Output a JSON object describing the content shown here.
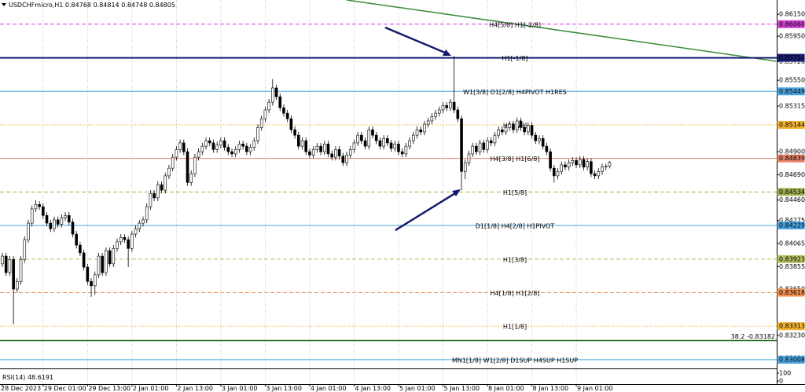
{
  "chart_data": {
    "type": "candlestick",
    "symbol": "USDCHFmicro,H1",
    "categories": [
      "28 Dec 2023",
      null,
      null,
      null,
      null,
      null,
      null,
      null,
      null,
      null,
      null,
      "29 Dec 01:00",
      null,
      null,
      null,
      null,
      null,
      null,
      null,
      null,
      null,
      null,
      null,
      "29 Dec 13:00",
      null,
      null,
      null,
      null,
      null,
      null,
      null,
      null,
      null,
      null,
      null,
      "2 Jan 01:00",
      null,
      null,
      null,
      null,
      null,
      null,
      null,
      null,
      null,
      null,
      null,
      "2 Jan 13:00",
      null,
      null,
      null,
      null,
      null,
      null,
      null,
      null,
      null,
      null,
      null,
      "3 Jan 01:00",
      null,
      null,
      null,
      null,
      null,
      null,
      null,
      null,
      null,
      null,
      null,
      "3 Jan 13:00",
      null,
      null,
      null,
      null,
      null,
      null,
      null,
      null,
      null,
      null,
      null,
      "4 Jan 01:00",
      null,
      null,
      null,
      null,
      null,
      null,
      null,
      null,
      null,
      null,
      null,
      "4 Jan 13:00",
      null,
      null,
      null,
      null,
      null,
      null,
      null,
      null,
      null,
      null,
      null,
      "5 Jan 01:00",
      null,
      null,
      null,
      null,
      null,
      null,
      null,
      null,
      null,
      null,
      null,
      "5 Jan 13:00",
      null,
      null,
      null,
      null,
      null,
      null,
      null,
      null,
      null,
      null,
      null,
      "8 Jan 01:00",
      null,
      null,
      null,
      null,
      null,
      null,
      null,
      null,
      null,
      null,
      null,
      "8 Jan 13:00",
      null,
      null,
      null,
      null,
      null,
      null,
      null,
      null,
      null,
      null,
      null,
      "9 Jan 01:00",
      null,
      null,
      null,
      null,
      null,
      null,
      null,
      null,
      null
    ],
    "open": [
      0.8388,
      0.8395,
      0.838,
      0.8392,
      0.8365,
      0.8372,
      0.8392,
      0.841,
      0.8425,
      0.8438,
      0.8442,
      0.844,
      0.8432,
      0.8425,
      0.842,
      0.8428,
      0.8424,
      0.843,
      0.8432,
      0.8426,
      0.8415,
      0.8405,
      0.8398,
      0.8385,
      0.8372,
      0.8368,
      0.8378,
      0.8395,
      0.838,
      0.84,
      0.8388,
      0.8402,
      0.8408,
      0.8412,
      0.841,
      0.8402,
      0.8415,
      0.842,
      0.8425,
      0.8428,
      0.844,
      0.8452,
      0.8448,
      0.846,
      0.8455,
      0.8468,
      0.8475,
      0.8485,
      0.8492,
      0.8498,
      0.849,
      0.8462,
      0.847,
      0.8485,
      0.849,
      0.8495,
      0.85,
      0.8498,
      0.8492,
      0.8496,
      0.85,
      0.8494,
      0.849,
      0.8488,
      0.8492,
      0.8497,
      0.8495,
      0.849,
      0.8494,
      0.85,
      0.8512,
      0.852,
      0.8528,
      0.8535,
      0.8548,
      0.854,
      0.853,
      0.8525,
      0.852,
      0.851,
      0.8505,
      0.8495,
      0.85,
      0.849,
      0.8487,
      0.8492,
      0.8495,
      0.849,
      0.8497,
      0.8488,
      0.8485,
      0.8492,
      0.8486,
      0.848,
      0.8487,
      0.8492,
      0.8498,
      0.8505,
      0.85,
      0.8495,
      0.851,
      0.8505,
      0.85,
      0.8495,
      0.8502,
      0.8498,
      0.8493,
      0.8497,
      0.849,
      0.8488,
      0.8495,
      0.85,
      0.8505,
      0.851,
      0.8508,
      0.8515,
      0.8518,
      0.8522,
      0.8525,
      0.8528,
      0.8532,
      0.853,
      0.8535,
      0.8528,
      0.852,
      0.8472,
      0.848,
      0.8488,
      0.8495,
      0.849,
      0.8498,
      0.8492,
      0.85,
      0.8498,
      0.8505,
      0.851,
      0.8508,
      0.8512,
      0.8515,
      0.851,
      0.8518,
      0.8512,
      0.8508,
      0.8514,
      0.8505,
      0.85,
      0.8502,
      0.8495,
      0.849,
      0.8475,
      0.8468,
      0.8472,
      0.8478,
      0.8476,
      0.848,
      0.8482,
      0.8478,
      0.8483,
      0.8476,
      0.8481,
      0.847,
      0.8468,
      0.8472,
      0.8476,
      0.84768
    ],
    "high": [
      0.8398,
      0.8398,
      0.8395,
      0.8395,
      0.8375,
      0.8395,
      0.8413,
      0.8428,
      0.8441,
      0.8446,
      0.8445,
      0.8443,
      0.8435,
      0.8428,
      0.8431,
      0.8431,
      0.8433,
      0.8435,
      0.8435,
      0.8429,
      0.8418,
      0.8408,
      0.8401,
      0.8388,
      0.8375,
      0.8381,
      0.8398,
      0.8398,
      0.8403,
      0.8403,
      0.8405,
      0.8411,
      0.8415,
      0.8415,
      0.8413,
      0.8418,
      0.8423,
      0.8428,
      0.8431,
      0.8443,
      0.8455,
      0.8455,
      0.8463,
      0.8463,
      0.8471,
      0.8478,
      0.8488,
      0.8495,
      0.8501,
      0.8501,
      0.8493,
      0.8473,
      0.8488,
      0.8493,
      0.8498,
      0.8503,
      0.8503,
      0.8501,
      0.8499,
      0.8503,
      0.8503,
      0.8497,
      0.8493,
      0.8495,
      0.85,
      0.85,
      0.8498,
      0.8497,
      0.8503,
      0.8515,
      0.8523,
      0.8531,
      0.8538,
      0.8556,
      0.8551,
      0.8543,
      0.8533,
      0.8528,
      0.8523,
      0.8513,
      0.8508,
      0.8503,
      0.8503,
      0.8493,
      0.8495,
      0.8498,
      0.8498,
      0.85,
      0.85,
      0.8491,
      0.8495,
      0.8495,
      0.8489,
      0.849,
      0.8495,
      0.8501,
      0.8508,
      0.8508,
      0.8503,
      0.8513,
      0.8513,
      0.8508,
      0.8503,
      0.8505,
      0.8505,
      0.8501,
      0.85,
      0.85,
      0.8493,
      0.8498,
      0.8503,
      0.8508,
      0.8513,
      0.8513,
      0.8518,
      0.8521,
      0.8525,
      0.8528,
      0.8531,
      0.8535,
      0.8535,
      0.8538,
      0.8577,
      0.8531,
      0.8523,
      0.8483,
      0.8491,
      0.8498,
      0.8498,
      0.8501,
      0.8501,
      0.8503,
      0.8503,
      0.8508,
      0.8513,
      0.8513,
      0.8515,
      0.8518,
      0.8518,
      0.8521,
      0.8521,
      0.8515,
      0.8517,
      0.8517,
      0.8508,
      0.8505,
      0.8505,
      0.8498,
      0.8493,
      0.8478,
      0.8475,
      0.8481,
      0.8481,
      0.8483,
      0.8485,
      0.8485,
      0.8486,
      0.8486,
      0.8484,
      0.8484,
      0.8473,
      0.8475,
      0.8479,
      0.8479,
      0.84814
    ],
    "low": [
      0.8385,
      0.8377,
      0.8377,
      0.8333,
      0.8362,
      0.8369,
      0.8389,
      0.8407,
      0.8422,
      0.8435,
      0.8437,
      0.8429,
      0.8422,
      0.8417,
      0.8417,
      0.8421,
      0.8421,
      0.8427,
      0.8423,
      0.8412,
      0.8402,
      0.8395,
      0.8382,
      0.8369,
      0.8358,
      0.836,
      0.8375,
      0.8377,
      0.8377,
      0.8385,
      0.8385,
      0.8399,
      0.8405,
      0.8407,
      0.8385,
      0.8399,
      0.8412,
      0.8417,
      0.8422,
      0.8425,
      0.8437,
      0.8445,
      0.8445,
      0.8452,
      0.8452,
      0.8465,
      0.8472,
      0.8482,
      0.8489,
      0.8487,
      0.8459,
      0.8459,
      0.8467,
      0.8482,
      0.8487,
      0.8492,
      0.8495,
      0.8489,
      0.8489,
      0.8493,
      0.8491,
      0.8487,
      0.8485,
      0.8485,
      0.8489,
      0.8492,
      0.8487,
      0.8487,
      0.8491,
      0.8497,
      0.8509,
      0.8517,
      0.8525,
      0.8532,
      0.8537,
      0.8527,
      0.8522,
      0.8517,
      0.8507,
      0.8502,
      0.8492,
      0.8492,
      0.8487,
      0.8484,
      0.8484,
      0.8489,
      0.8487,
      0.8487,
      0.8485,
      0.8482,
      0.8482,
      0.8483,
      0.8477,
      0.8477,
      0.8484,
      0.8489,
      0.8495,
      0.8497,
      0.8492,
      0.8492,
      0.8502,
      0.8497,
      0.8492,
      0.8492,
      0.8495,
      0.849,
      0.849,
      0.8487,
      0.8485,
      0.8485,
      0.8492,
      0.8497,
      0.8502,
      0.8505,
      0.8505,
      0.8512,
      0.8515,
      0.8519,
      0.8522,
      0.8525,
      0.8527,
      0.8527,
      0.8525,
      0.8517,
      0.8455,
      0.8465,
      0.8477,
      0.8485,
      0.8487,
      0.8487,
      0.8489,
      0.8489,
      0.8495,
      0.8495,
      0.8502,
      0.8505,
      0.8505,
      0.8509,
      0.8507,
      0.8507,
      0.8509,
      0.8505,
      0.8505,
      0.8502,
      0.8497,
      0.8497,
      0.8492,
      0.8487,
      0.8472,
      0.8462,
      0.8465,
      0.8469,
      0.8473,
      0.8473,
      0.8477,
      0.8475,
      0.8475,
      0.8473,
      0.8473,
      0.8467,
      0.8465,
      0.8465,
      0.8469,
      0.8473,
      0.84748
    ],
    "close": [
      0.8395,
      0.838,
      0.8392,
      0.8365,
      0.8372,
      0.8392,
      0.841,
      0.8425,
      0.8438,
      0.8442,
      0.844,
      0.8432,
      0.8425,
      0.842,
      0.8428,
      0.8424,
      0.843,
      0.8432,
      0.8426,
      0.8415,
      0.8405,
      0.8398,
      0.8385,
      0.8372,
      0.8368,
      0.8378,
      0.8395,
      0.838,
      0.84,
      0.8388,
      0.8402,
      0.8408,
      0.8412,
      0.841,
      0.8402,
      0.8415,
      0.842,
      0.8425,
      0.8428,
      0.844,
      0.8452,
      0.8448,
      0.846,
      0.8455,
      0.8468,
      0.8475,
      0.8485,
      0.8492,
      0.8498,
      0.849,
      0.8462,
      0.847,
      0.8485,
      0.849,
      0.8495,
      0.85,
      0.8498,
      0.8492,
      0.8496,
      0.85,
      0.8494,
      0.849,
      0.8488,
      0.8492,
      0.8497,
      0.8495,
      0.849,
      0.8494,
      0.85,
      0.8512,
      0.852,
      0.8528,
      0.8535,
      0.8548,
      0.854,
      0.853,
      0.8525,
      0.852,
      0.851,
      0.8505,
      0.8495,
      0.85,
      0.849,
      0.8487,
      0.8492,
      0.8495,
      0.849,
      0.8497,
      0.8488,
      0.8485,
      0.8492,
      0.8486,
      0.848,
      0.8487,
      0.8492,
      0.8498,
      0.8505,
      0.85,
      0.8495,
      0.851,
      0.8505,
      0.85,
      0.8495,
      0.8502,
      0.8498,
      0.8493,
      0.8497,
      0.849,
      0.8488,
      0.8495,
      0.85,
      0.8505,
      0.851,
      0.8508,
      0.8515,
      0.8518,
      0.8522,
      0.8525,
      0.8528,
      0.8532,
      0.853,
      0.8535,
      0.8528,
      0.852,
      0.8472,
      0.848,
      0.8488,
      0.8495,
      0.849,
      0.8498,
      0.8492,
      0.85,
      0.8498,
      0.8505,
      0.851,
      0.8508,
      0.8512,
      0.8515,
      0.851,
      0.8518,
      0.8512,
      0.8508,
      0.8514,
      0.8505,
      0.85,
      0.8502,
      0.8495,
      0.849,
      0.8475,
      0.8468,
      0.8472,
      0.8478,
      0.8476,
      0.848,
      0.8482,
      0.8478,
      0.8483,
      0.8476,
      0.8481,
      0.847,
      0.8468,
      0.8472,
      0.8476,
      0.84768,
      0.84805
    ],
    "up_color": "#ffffff",
    "down_color": "#000000",
    "ylim": [
      0.8295,
      0.8628
    ],
    "yticks": [
      {
        "value": 0.8615,
        "label": "0.86150"
      },
      {
        "value": 0.8595,
        "label": "0.85950"
      },
      {
        "value": 0.8572,
        "label": "0.85720"
      },
      {
        "value": 0.8555,
        "label": "0.85550"
      },
      0.85315,
      {
        "value": 0.849,
        "label": "0.84900"
      },
      {
        "value": 0.8469,
        "label": "0.84690"
      },
      {
        "value": 0.8446,
        "label": "0.84460"
      },
      0.84275,
      0.84065,
      0.83855,
      {
        "value": 0.8365,
        "label": "0.83650"
      },
      {
        "value": 0.8323,
        "label": "0.83230"
      },
      {
        "value": 0.8302,
        "label": "0.83020"
      }
    ],
    "grid": "vertical",
    "levels": [
      {
        "price": 0.8606,
        "price_label": "0.86060",
        "text": "H4[5/8] H1[-2/8]",
        "color": "#d43fd4",
        "text_color": "#d43fd4",
        "style": "dashed"
      },
      {
        "price": 0.85754,
        "price_label": "0.85754",
        "text": "H1[-1/8]",
        "color": "#1a1f71",
        "text_color": "#9aa0c0",
        "style": "solid",
        "width": 2
      },
      {
        "price": 0.85449,
        "price_label": "0.85449",
        "text": "W1[3/8] D1[2/8] H4PIVOT H1RES",
        "color": "#4aa3df",
        "text_color": "#3a8fd0",
        "style": "solid"
      },
      {
        "price": 0.85144,
        "price_label": "0.85144",
        "text": "H1[7/8]",
        "color": "#f2b233",
        "text_color": "#f2a020",
        "style": "dotted"
      },
      {
        "price": 0.84839,
        "price_label": "0.84839",
        "text": "H4[3/8] H1[6/8]",
        "color": "#e8826a",
        "text_color": "#e06030",
        "style": "solid"
      },
      {
        "price": 0.84534,
        "price_label": "0.84534",
        "text": "H1[5/8]",
        "color": "#a0b050",
        "text_color": "#6b8e23",
        "style": "dashed"
      },
      {
        "price": 0.84229,
        "price_label": "0.84229",
        "text": "D1[1/8] H4[2/8] H1PIVOT",
        "color": "#4aa3df",
        "text_color": "#3a8fd0",
        "style": "solid"
      },
      {
        "price": 0.83923,
        "price_label": "0.83923",
        "text": "H1[3/8]",
        "color": "#b5c060",
        "text_color": "#6b8e23",
        "style": "dashed"
      },
      {
        "price": 0.83618,
        "price_label": "0.83618",
        "text": "H4[1/8] H1[2/8]",
        "color": "#f09050",
        "text_color": "#e05a20",
        "style": "dashed"
      },
      {
        "price": 0.83313,
        "price_label": "0.83313",
        "text": "H1[1/8]",
        "color": "#f2b233",
        "text_color": "#f2a020",
        "style": "dotted"
      },
      {
        "price": 0.83182,
        "text": "38.2 -0.83182",
        "color": "#1e6b1e",
        "text_color": "#333333",
        "style": "solid",
        "width": 1.5,
        "label_align": "right"
      },
      {
        "price": 0.83008,
        "price_label": "0.83008",
        "text": "MN1[1/8] W1[2/8] D1SUP H4SUP H1SUP",
        "color": "#4aa3df",
        "text_color": "#3a8fd0",
        "style": "solid"
      }
    ],
    "trendlines": [
      {
        "color": "#3a8a3a",
        "x": [
          93,
          209
        ],
        "y": [
          0.8628,
          0.85723
        ]
      }
    ],
    "rsi": {
      "label": "RSI(14)",
      "value": 48.6191,
      "ylim": [
        0,
        100
      ],
      "yticks": [
        100,
        0
      ]
    }
  }
}
